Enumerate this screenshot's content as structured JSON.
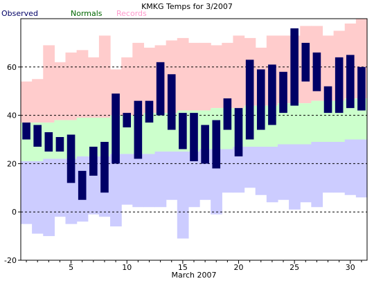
{
  "chart_data": {
    "type": "bar",
    "title": "KMKG Temps for 3/2007",
    "xlabel": "March 2007",
    "ylabel": "",
    "xlim": [
      0.5,
      31.5
    ],
    "ylim": [
      -20,
      80
    ],
    "y_ticks": [
      -20,
      0,
      20,
      40,
      60
    ],
    "x_ticks": [
      5,
      10,
      15,
      20,
      25,
      30
    ],
    "gridlines": "dashed horizontal at 0, 20, 40, 60",
    "legend": {
      "placement": "top-left, above plot",
      "items": [
        "Observed",
        "Normals",
        "Records"
      ]
    },
    "colors": {
      "observed": "#000066",
      "normals_band": "#ccffcc",
      "records_high_band": "#ffcccc",
      "records_low_band": "#ccccff",
      "legend_observed": "#000066",
      "legend_normals": "#006600",
      "legend_records": "#ff99cc"
    },
    "days": [
      1,
      2,
      3,
      4,
      5,
      6,
      7,
      8,
      9,
      10,
      11,
      12,
      13,
      14,
      15,
      16,
      17,
      18,
      19,
      20,
      21,
      22,
      23,
      24,
      25,
      26,
      27,
      28,
      29,
      30,
      31
    ],
    "series": [
      {
        "name": "Observed",
        "key": "observed_high",
        "values": [
          37,
          36,
          33,
          31,
          32,
          17,
          27,
          29,
          49,
          41,
          46,
          46,
          62,
          57,
          41,
          41,
          36,
          38,
          47,
          43,
          63,
          59,
          61,
          58,
          76,
          70,
          66,
          52,
          64,
          65,
          60
        ]
      },
      {
        "name": "Observed",
        "key": "observed_low",
        "values": [
          30,
          27,
          25,
          25,
          12,
          5,
          15,
          8,
          20,
          35,
          22,
          37,
          40,
          34,
          26,
          21,
          20,
          18,
          34,
          23,
          30,
          34,
          36,
          41,
          44,
          54,
          50,
          41,
          41,
          43,
          42
        ]
      },
      {
        "name": "Normals",
        "key": "normal_high",
        "values": [
          37,
          37,
          37,
          38,
          38,
          39,
          39,
          39,
          40,
          40,
          40,
          41,
          41,
          41,
          42,
          42,
          42,
          43,
          43,
          43,
          44,
          44,
          44,
          45,
          45,
          45,
          46,
          46,
          46,
          47,
          47
        ]
      },
      {
        "name": "Normals",
        "key": "normal_low",
        "values": [
          21,
          21,
          22,
          22,
          22,
          23,
          23,
          23,
          24,
          24,
          24,
          24,
          25,
          25,
          25,
          25,
          26,
          26,
          26,
          27,
          27,
          27,
          27,
          28,
          28,
          28,
          29,
          29,
          29,
          30,
          30
        ]
      },
      {
        "name": "Records",
        "key": "record_high",
        "values": [
          54,
          55,
          69,
          62,
          66,
          67,
          64,
          73,
          59,
          64,
          70,
          68,
          69,
          71,
          72,
          70,
          70,
          69,
          70,
          73,
          72,
          68,
          73,
          73,
          73,
          77,
          77,
          73,
          75,
          78,
          80
        ]
      },
      {
        "name": "Records",
        "key": "record_low",
        "values": [
          -5,
          -9,
          -10,
          -2,
          -5,
          -4,
          -1,
          -2,
          -6,
          3,
          2,
          2,
          2,
          5,
          -11,
          2,
          5,
          -1,
          8,
          8,
          10,
          7,
          4,
          5,
          1,
          4,
          2,
          8,
          8,
          7,
          6
        ]
      }
    ]
  }
}
